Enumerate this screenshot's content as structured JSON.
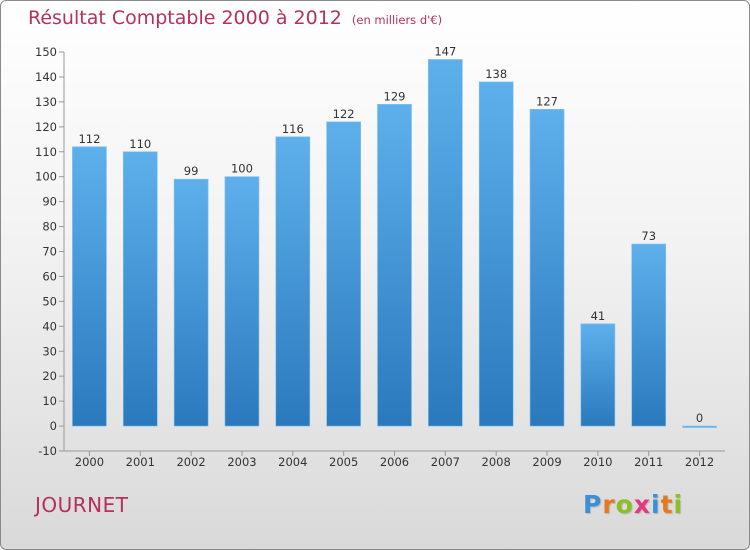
{
  "header": {
    "title": "Résultat Comptable 2000 à 2012",
    "unit": "(en milliers d'€)"
  },
  "footer": {
    "commune": "JOURNET",
    "logo": {
      "text": "Proxiti",
      "letters": [
        {
          "ch": "P",
          "color": "#3b8fd6"
        },
        {
          "ch": "r",
          "color": "#e8781e"
        },
        {
          "ch": "o",
          "color": "#8cbf26"
        },
        {
          "ch": "x",
          "color": "#e5387a"
        },
        {
          "ch": "i",
          "color": "#3b8fd6"
        },
        {
          "ch": "t",
          "color": "#e8781e"
        },
        {
          "ch": "i",
          "color": "#8cbf26"
        }
      ]
    }
  },
  "chart_data": {
    "type": "bar",
    "categories": [
      "2000",
      "2001",
      "2002",
      "2003",
      "2004",
      "2005",
      "2006",
      "2007",
      "2008",
      "2009",
      "2010",
      "2011",
      "2012"
    ],
    "values": [
      112,
      110,
      99,
      100,
      116,
      122,
      129,
      147,
      138,
      127,
      41,
      73,
      0
    ],
    "ylim": [
      -10,
      150
    ],
    "yticks": [
      -10,
      0,
      10,
      20,
      30,
      40,
      50,
      60,
      70,
      80,
      90,
      100,
      110,
      120,
      130,
      140,
      150
    ],
    "grid": false,
    "bar_color_top": "#5eb0ec",
    "bar_color_bottom": "#2a79bd"
  }
}
